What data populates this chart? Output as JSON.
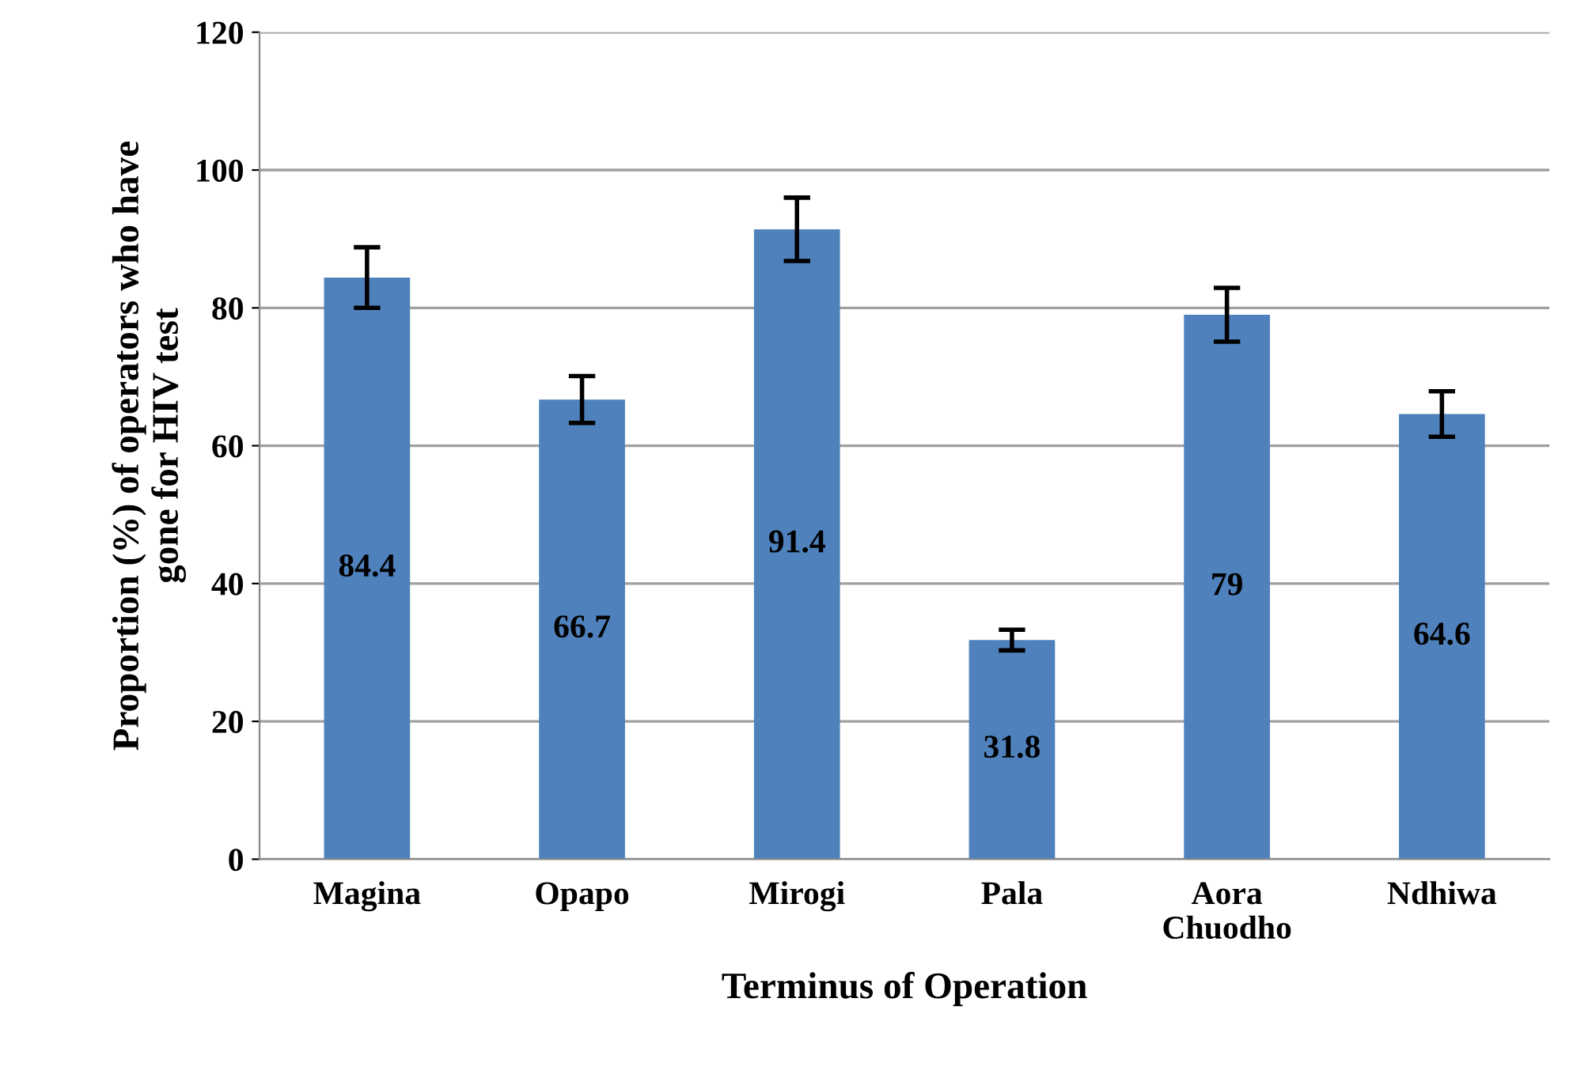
{
  "chart_data": {
    "type": "bar",
    "xlabel": "Terminus of Operation",
    "ylabel": "Proportion (%) of operators who have\ngone for HIV test",
    "categories": [
      "Magina",
      "Opapo",
      "Mirogi",
      "Pala",
      "Aora\nChuodho",
      "Ndhiwa"
    ],
    "values": [
      84.4,
      66.7,
      91.4,
      31.8,
      79,
      64.6
    ],
    "errors": [
      4.4,
      3.4,
      4.6,
      1.5,
      3.9,
      3.3
    ],
    "color": "#4f81bd",
    "ylim": [
      0,
      120
    ],
    "yticks": [
      0,
      20,
      40,
      60,
      80,
      100,
      120
    ],
    "grid": "y",
    "data_labels": true
  }
}
